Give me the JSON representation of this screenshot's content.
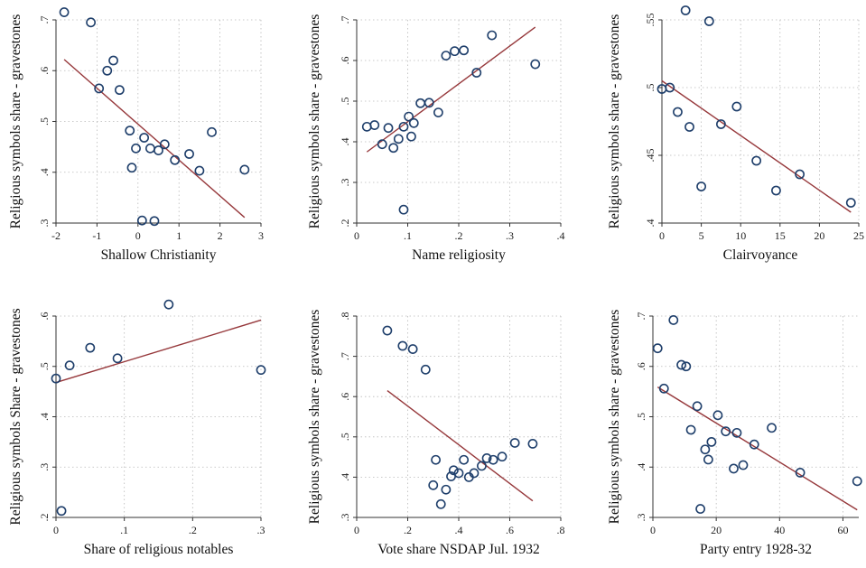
{
  "colors": {
    "marker": "#1f3f6b",
    "fit_line": "#96383b",
    "grid": "#b9b9b9"
  },
  "chart_data": [
    {
      "type": "scatter",
      "xlabel": "Shallow Christianity",
      "ylabel": "Religious symbols share - gravestones",
      "xlim": [
        -2,
        3
      ],
      "ylim": [
        0.3,
        0.7
      ],
      "xticks": [
        -2,
        -1,
        0,
        1,
        2,
        3
      ],
      "xtick_labels": [
        "-2",
        "-1",
        "0",
        "1",
        "2",
        "3"
      ],
      "yticks": [
        0.3,
        0.4,
        0.5,
        0.6,
        0.7
      ],
      "ytick_labels": [
        ".3",
        ".4",
        ".5",
        ".6",
        ".7"
      ],
      "grid": true,
      "points": [
        [
          -1.8,
          0.715
        ],
        [
          -1.15,
          0.695
        ],
        [
          -0.6,
          0.62
        ],
        [
          -0.75,
          0.6
        ],
        [
          -0.95,
          0.565
        ],
        [
          -0.45,
          0.562
        ],
        [
          -0.2,
          0.482
        ],
        [
          0.15,
          0.468
        ],
        [
          -0.05,
          0.447
        ],
        [
          0.3,
          0.447
        ],
        [
          0.5,
          0.443
        ],
        [
          0.65,
          0.455
        ],
        [
          0.9,
          0.424
        ],
        [
          1.25,
          0.436
        ],
        [
          -0.15,
          0.409
        ],
        [
          1.5,
          0.403
        ],
        [
          1.8,
          0.479
        ],
        [
          2.6,
          0.405
        ],
        [
          0.1,
          0.305
        ],
        [
          0.4,
          0.304
        ]
      ],
      "fit_line": [
        [
          -1.8,
          0.622
        ],
        [
          2.6,
          0.311
        ]
      ]
    },
    {
      "type": "scatter",
      "xlabel": "Name religiosity",
      "ylabel": "Religious symbols share - gravestones",
      "xlim": [
        0,
        0.4
      ],
      "ylim": [
        0.2,
        0.7
      ],
      "xticks": [
        0,
        0.1,
        0.2,
        0.3,
        0.4
      ],
      "xtick_labels": [
        "0",
        ".1",
        ".2",
        ".3",
        ".4"
      ],
      "yticks": [
        0.2,
        0.3,
        0.4,
        0.5,
        0.6,
        0.7
      ],
      "ytick_labels": [
        ".2",
        ".3",
        ".4",
        ".5",
        ".6",
        ".7"
      ],
      "grid": true,
      "points": [
        [
          0.02,
          0.437
        ],
        [
          0.035,
          0.441
        ],
        [
          0.05,
          0.394
        ],
        [
          0.062,
          0.434
        ],
        [
          0.072,
          0.385
        ],
        [
          0.082,
          0.407
        ],
        [
          0.092,
          0.437
        ],
        [
          0.102,
          0.462
        ],
        [
          0.107,
          0.413
        ],
        [
          0.112,
          0.446
        ],
        [
          0.125,
          0.495
        ],
        [
          0.142,
          0.496
        ],
        [
          0.16,
          0.472
        ],
        [
          0.175,
          0.612
        ],
        [
          0.192,
          0.623
        ],
        [
          0.21,
          0.625
        ],
        [
          0.235,
          0.57
        ],
        [
          0.265,
          0.662
        ],
        [
          0.35,
          0.591
        ],
        [
          0.092,
          0.233
        ]
      ],
      "fit_line": [
        [
          0.02,
          0.375
        ],
        [
          0.35,
          0.682
        ]
      ]
    },
    {
      "type": "scatter",
      "xlabel": "Clairvoyance",
      "ylabel": "Religious symbols share - gravestones",
      "xlim": [
        0,
        25
      ],
      "ylim": [
        0.4,
        0.55
      ],
      "xticks": [
        0,
        5,
        10,
        15,
        20,
        25
      ],
      "xtick_labels": [
        "0",
        "5",
        "10",
        "15",
        "20",
        "25"
      ],
      "yticks": [
        0.4,
        0.45,
        0.5,
        0.55
      ],
      "ytick_labels": [
        ".4",
        ".45",
        ".5",
        ".55"
      ],
      "grid": true,
      "points": [
        [
          3,
          0.557
        ],
        [
          6,
          0.549
        ],
        [
          0,
          0.499
        ],
        [
          1,
          0.5
        ],
        [
          2,
          0.482
        ],
        [
          3.5,
          0.471
        ],
        [
          7.5,
          0.473
        ],
        [
          9.5,
          0.486
        ],
        [
          12,
          0.446
        ],
        [
          14.5,
          0.424
        ],
        [
          17.5,
          0.436
        ],
        [
          24,
          0.415
        ],
        [
          5,
          0.427
        ]
      ],
      "fit_line": [
        [
          0,
          0.505
        ],
        [
          24,
          0.408
        ]
      ]
    },
    {
      "type": "scatter",
      "xlabel": "Share of religious notables",
      "ylabel": "Religious symbols Share - gravestones",
      "xlim": [
        0,
        0.3
      ],
      "ylim": [
        0.2,
        0.6
      ],
      "xticks": [
        0,
        0.1,
        0.2,
        0.3
      ],
      "xtick_labels": [
        "0",
        ".1",
        ".2",
        ".3"
      ],
      "yticks": [
        0.2,
        0.3,
        0.4,
        0.5,
        0.6
      ],
      "ytick_labels": [
        ".2",
        ".3",
        ".4",
        ".5",
        ".6"
      ],
      "grid": true,
      "points": [
        [
          0,
          0.476
        ],
        [
          0.02,
          0.502
        ],
        [
          0.05,
          0.537
        ],
        [
          0.09,
          0.516
        ],
        [
          0.165,
          0.623
        ],
        [
          0.3,
          0.493
        ],
        [
          0.008,
          0.213
        ]
      ],
      "fit_line": [
        [
          0,
          0.468
        ],
        [
          0.3,
          0.592
        ]
      ]
    },
    {
      "type": "scatter",
      "xlabel": "Vote share NSDAP Jul. 1932",
      "ylabel": "Religious symbols share - gravestones",
      "xlim": [
        0,
        0.8
      ],
      "ylim": [
        0.3,
        0.8
      ],
      "xticks": [
        0,
        0.2,
        0.4,
        0.6,
        0.8
      ],
      "xtick_labels": [
        "0",
        ".2",
        ".4",
        ".6",
        ".8"
      ],
      "yticks": [
        0.3,
        0.4,
        0.5,
        0.6,
        0.7,
        0.8
      ],
      "ytick_labels": [
        ".3",
        ".4",
        ".5",
        ".6",
        ".7",
        ".8"
      ],
      "grid": true,
      "points": [
        [
          0.12,
          0.764
        ],
        [
          0.18,
          0.726
        ],
        [
          0.22,
          0.718
        ],
        [
          0.27,
          0.667
        ],
        [
          0.3,
          0.38
        ],
        [
          0.31,
          0.443
        ],
        [
          0.33,
          0.333
        ],
        [
          0.35,
          0.369
        ],
        [
          0.37,
          0.402
        ],
        [
          0.38,
          0.417
        ],
        [
          0.4,
          0.41
        ],
        [
          0.42,
          0.443
        ],
        [
          0.44,
          0.4
        ],
        [
          0.46,
          0.41
        ],
        [
          0.49,
          0.428
        ],
        [
          0.51,
          0.447
        ],
        [
          0.535,
          0.443
        ],
        [
          0.57,
          0.451
        ],
        [
          0.62,
          0.485
        ],
        [
          0.69,
          0.483
        ]
      ],
      "fit_line": [
        [
          0.12,
          0.615
        ],
        [
          0.69,
          0.341
        ]
      ]
    },
    {
      "type": "scatter",
      "xlabel": "Party entry 1928-32",
      "ylabel": "Religious symbols share - gravestones",
      "xlim": [
        0,
        65
      ],
      "ylim": [
        0.3,
        0.7
      ],
      "xticks": [
        0,
        20,
        40,
        60
      ],
      "xtick_labels": [
        "0",
        "20",
        "40",
        "60"
      ],
      "yticks": [
        0.3,
        0.4,
        0.5,
        0.6,
        0.7
      ],
      "ytick_labels": [
        ".3",
        ".4",
        ".5",
        ".6",
        ".7"
      ],
      "grid": true,
      "points": [
        [
          1.5,
          0.636
        ],
        [
          6.5,
          0.692
        ],
        [
          3.5,
          0.556
        ],
        [
          9,
          0.603
        ],
        [
          10.5,
          0.6
        ],
        [
          12,
          0.474
        ],
        [
          14,
          0.521
        ],
        [
          20.5,
          0.503
        ],
        [
          23,
          0.471
        ],
        [
          26.5,
          0.468
        ],
        [
          37.5,
          0.478
        ],
        [
          32,
          0.445
        ],
        [
          18.5,
          0.45
        ],
        [
          16.5,
          0.435
        ],
        [
          17.5,
          0.415
        ],
        [
          25.5,
          0.397
        ],
        [
          28.5,
          0.404
        ],
        [
          46.5,
          0.389
        ],
        [
          64.5,
          0.372
        ],
        [
          15,
          0.317
        ]
      ],
      "fit_line": [
        [
          1.5,
          0.559
        ],
        [
          64.5,
          0.315
        ]
      ]
    }
  ]
}
